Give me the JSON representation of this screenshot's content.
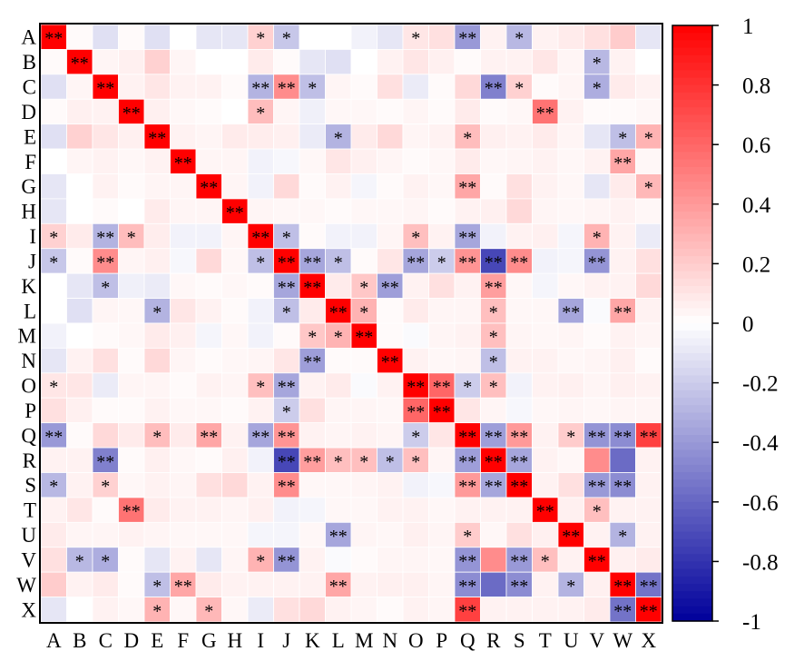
{
  "chart_data": {
    "type": "heatmap",
    "labels": [
      "A",
      "B",
      "C",
      "D",
      "E",
      "F",
      "G",
      "H",
      "I",
      "J",
      "K",
      "L",
      "M",
      "N",
      "O",
      "P",
      "Q",
      "R",
      "S",
      "T",
      "U",
      "V",
      "W",
      "X"
    ],
    "values": [
      [
        1.0,
        0.02,
        -0.12,
        0.02,
        -0.12,
        0.0,
        -0.1,
        -0.1,
        0.18,
        -0.22,
        0.0,
        0.0,
        -0.05,
        -0.1,
        0.1,
        0.12,
        -0.4,
        0.05,
        -0.28,
        0.05,
        0.08,
        0.12,
        0.2,
        -0.1
      ],
      [
        0.02,
        1.0,
        0.04,
        0.06,
        0.18,
        0.04,
        0.0,
        0.0,
        0.08,
        0.02,
        -0.1,
        -0.12,
        0.0,
        0.05,
        0.1,
        0.06,
        0.02,
        0.05,
        0.05,
        0.1,
        0.04,
        -0.28,
        0.05,
        0.0
      ],
      [
        -0.12,
        0.04,
        1.0,
        0.05,
        0.1,
        0.05,
        0.05,
        0.02,
        -0.3,
        0.45,
        -0.25,
        0.04,
        0.02,
        0.12,
        -0.08,
        0.02,
        0.15,
        -0.5,
        0.18,
        0.02,
        0.04,
        -0.32,
        0.08,
        0.05
      ],
      [
        0.02,
        0.06,
        0.05,
        1.0,
        0.06,
        0.03,
        0.02,
        0.0,
        0.26,
        0.04,
        -0.06,
        0.03,
        0.03,
        0.02,
        0.04,
        0.02,
        0.08,
        0.02,
        0.03,
        0.55,
        0.05,
        0.02,
        0.02,
        0.03
      ],
      [
        -0.12,
        0.18,
        0.1,
        0.06,
        1.0,
        0.05,
        0.04,
        0.08,
        0.07,
        0.06,
        -0.08,
        -0.3,
        0.08,
        0.15,
        0.04,
        0.05,
        0.26,
        0.06,
        0.05,
        0.08,
        0.04,
        -0.1,
        -0.25,
        0.3
      ],
      [
        0.0,
        0.04,
        0.05,
        0.03,
        0.05,
        1.0,
        0.04,
        0.04,
        -0.05,
        -0.03,
        0.03,
        0.1,
        0.06,
        0.04,
        0.02,
        0.03,
        0.08,
        0.03,
        0.04,
        0.05,
        0.03,
        0.05,
        0.35,
        0.03
      ],
      [
        -0.1,
        0.0,
        0.05,
        0.02,
        0.04,
        0.04,
        1.0,
        0.04,
        -0.05,
        0.15,
        0.02,
        0.05,
        -0.04,
        0.02,
        0.05,
        0.03,
        0.35,
        0.02,
        0.12,
        0.05,
        0.03,
        -0.1,
        0.08,
        0.28
      ],
      [
        -0.1,
        0.0,
        0.02,
        0.0,
        0.08,
        0.04,
        0.04,
        1.0,
        0.04,
        0.03,
        0.03,
        0.02,
        0.03,
        0.03,
        0.04,
        0.02,
        0.05,
        0.06,
        0.15,
        0.04,
        0.03,
        0.04,
        0.05,
        0.03
      ],
      [
        0.18,
        0.08,
        -0.3,
        0.26,
        0.07,
        -0.05,
        -0.05,
        0.04,
        1.0,
        -0.25,
        0.02,
        -0.05,
        -0.05,
        0.04,
        0.25,
        0.05,
        -0.35,
        -0.05,
        0.05,
        0.06,
        -0.04,
        0.3,
        0.05,
        -0.08
      ],
      [
        -0.22,
        0.02,
        0.45,
        0.04,
        0.06,
        -0.03,
        0.15,
        0.03,
        -0.25,
        1.0,
        -0.35,
        -0.25,
        0.02,
        0.1,
        -0.35,
        -0.2,
        0.42,
        -0.72,
        0.45,
        -0.05,
        -0.04,
        -0.42,
        0.05,
        0.12
      ],
      [
        0.0,
        -0.1,
        -0.25,
        -0.06,
        -0.08,
        0.03,
        0.02,
        0.03,
        0.02,
        -0.35,
        1.0,
        0.08,
        0.22,
        -0.38,
        0.05,
        0.12,
        0.05,
        0.38,
        0.03,
        -0.04,
        0.03,
        0.05,
        0.05,
        0.15
      ],
      [
        0.0,
        -0.12,
        0.04,
        0.03,
        -0.3,
        0.1,
        0.05,
        0.02,
        -0.05,
        -0.25,
        0.08,
        1.0,
        0.3,
        0.02,
        0.08,
        0.04,
        0.04,
        0.25,
        0.03,
        0.03,
        -0.35,
        -0.02,
        0.35,
        0.05
      ],
      [
        -0.05,
        0.0,
        0.02,
        0.03,
        0.08,
        0.06,
        -0.04,
        0.03,
        -0.05,
        0.02,
        0.22,
        0.3,
        1.0,
        0.02,
        -0.02,
        0.04,
        0.05,
        0.25,
        0.04,
        0.03,
        0.04,
        0.02,
        0.05,
        0.04
      ],
      [
        -0.1,
        0.05,
        0.12,
        0.02,
        0.15,
        0.04,
        0.02,
        0.03,
        0.04,
        0.1,
        -0.38,
        0.02,
        0.02,
        1.0,
        0.05,
        0.03,
        0.04,
        -0.25,
        0.05,
        0.05,
        0.03,
        0.04,
        0.06,
        0.02
      ],
      [
        0.1,
        0.1,
        -0.08,
        0.04,
        0.04,
        0.02,
        0.05,
        0.04,
        0.25,
        -0.35,
        0.05,
        0.08,
        -0.02,
        0.05,
        1.0,
        0.6,
        -0.2,
        0.25,
        -0.05,
        0.05,
        0.06,
        0.04,
        0.06,
        0.05
      ],
      [
        0.12,
        0.06,
        0.02,
        0.02,
        0.05,
        0.03,
        0.03,
        0.02,
        0.05,
        -0.2,
        0.12,
        0.04,
        0.04,
        0.03,
        0.6,
        1.0,
        0.1,
        0.04,
        -0.03,
        0.03,
        0.04,
        0.03,
        0.04,
        0.04
      ],
      [
        -0.4,
        0.02,
        0.15,
        0.08,
        0.26,
        0.08,
        0.35,
        0.05,
        -0.35,
        0.42,
        0.05,
        0.04,
        0.05,
        0.04,
        -0.2,
        0.1,
        1.0,
        -0.38,
        0.4,
        0.05,
        0.2,
        -0.42,
        -0.45,
        0.75
      ],
      [
        0.05,
        0.05,
        -0.5,
        0.02,
        0.06,
        0.03,
        0.02,
        0.06,
        -0.05,
        -0.72,
        0.38,
        0.25,
        0.25,
        -0.25,
        0.25,
        0.04,
        -0.38,
        1.0,
        -0.35,
        0.05,
        0.03,
        0.45,
        -0.58,
        0.05
      ],
      [
        -0.28,
        0.05,
        0.18,
        0.03,
        0.05,
        0.04,
        0.12,
        0.15,
        0.05,
        0.45,
        0.03,
        0.03,
        0.04,
        0.05,
        -0.05,
        -0.03,
        0.4,
        -0.35,
        1.0,
        0.05,
        0.12,
        -0.4,
        -0.45,
        0.05
      ],
      [
        0.05,
        0.1,
        0.02,
        0.55,
        0.08,
        0.05,
        0.05,
        0.04,
        0.06,
        -0.05,
        -0.04,
        0.03,
        0.03,
        0.05,
        0.05,
        0.03,
        0.05,
        0.05,
        0.05,
        1.0,
        0.06,
        0.25,
        0.05,
        0.05
      ],
      [
        0.08,
        0.04,
        0.04,
        0.05,
        0.04,
        0.03,
        0.03,
        0.03,
        -0.04,
        -0.04,
        0.03,
        -0.35,
        0.04,
        0.03,
        0.06,
        0.04,
        0.2,
        0.03,
        0.12,
        0.06,
        1.0,
        0.05,
        -0.3,
        0.05
      ],
      [
        0.12,
        -0.28,
        -0.32,
        0.02,
        -0.1,
        0.05,
        -0.1,
        0.04,
        0.3,
        -0.42,
        0.05,
        -0.02,
        0.02,
        0.04,
        0.04,
        0.03,
        -0.42,
        0.45,
        -0.4,
        0.25,
        0.05,
        1.0,
        0.06,
        0.08
      ],
      [
        0.2,
        0.05,
        0.08,
        0.02,
        -0.25,
        0.35,
        0.08,
        0.05,
        0.05,
        0.05,
        0.05,
        0.35,
        0.05,
        0.06,
        0.06,
        0.04,
        -0.45,
        -0.58,
        -0.45,
        0.05,
        -0.3,
        0.06,
        1.0,
        -0.55
      ],
      [
        -0.1,
        0.0,
        0.05,
        0.03,
        0.3,
        0.03,
        0.28,
        0.03,
        -0.08,
        0.12,
        0.15,
        0.05,
        0.04,
        0.02,
        0.05,
        0.04,
        0.75,
        0.05,
        0.05,
        0.05,
        0.05,
        0.08,
        -0.55,
        1.0
      ]
    ],
    "significance": [
      [
        "**",
        "",
        "",
        "",
        "",
        "",
        "",
        "",
        "*",
        "*",
        "",
        "",
        "",
        "",
        "*",
        "",
        "**",
        "",
        "*",
        "",
        "",
        "",
        "",
        ""
      ],
      [
        "",
        "**",
        "",
        "",
        "",
        "",
        "",
        "",
        "",
        "",
        "",
        "",
        "",
        "",
        "",
        "",
        "",
        "",
        "",
        "",
        "",
        "*",
        "",
        ""
      ],
      [
        "",
        "",
        "**",
        "",
        "",
        "",
        "",
        "",
        "**",
        "**",
        "*",
        "",
        "",
        "",
        "",
        "",
        "",
        "**",
        "*",
        "",
        "",
        "*",
        "",
        ""
      ],
      [
        "",
        "",
        "",
        "**",
        "",
        "",
        "",
        "",
        "*",
        "",
        "",
        "",
        "",
        "",
        "",
        "",
        "",
        "",
        "",
        "**",
        "",
        "",
        "",
        ""
      ],
      [
        "",
        "",
        "",
        "",
        "**",
        "",
        "",
        "",
        "",
        "",
        "",
        "*",
        "",
        "",
        "",
        "",
        "*",
        "",
        "",
        "",
        "",
        "",
        "*",
        "*"
      ],
      [
        "",
        "",
        "",
        "",
        "",
        "**",
        "",
        "",
        "",
        "",
        "",
        "",
        "",
        "",
        "",
        "",
        "",
        "",
        "",
        "",
        "",
        "",
        "**",
        ""
      ],
      [
        "",
        "",
        "",
        "",
        "",
        "",
        "**",
        "",
        "",
        "",
        "",
        "",
        "",
        "",
        "",
        "",
        "**",
        "",
        "",
        "",
        "",
        "",
        "",
        "*"
      ],
      [
        "",
        "",
        "",
        "",
        "",
        "",
        "",
        "**",
        "",
        "",
        "",
        "",
        "",
        "",
        "",
        "",
        "",
        "",
        "",
        "",
        "",
        "",
        "",
        ""
      ],
      [
        "*",
        "",
        "**",
        "*",
        "",
        "",
        "",
        "",
        "**",
        "*",
        "",
        "",
        "",
        "",
        "*",
        "",
        "**",
        "",
        "",
        "",
        "",
        "*",
        "",
        ""
      ],
      [
        "*",
        "",
        "**",
        "",
        "",
        "",
        "",
        "",
        "*",
        "**",
        "**",
        "*",
        "",
        "",
        "**",
        "*",
        "**",
        "**",
        "**",
        "",
        "",
        "**",
        "",
        ""
      ],
      [
        "",
        "",
        "*",
        "",
        "",
        "",
        "",
        "",
        "",
        "**",
        "**",
        "",
        "*",
        "**",
        "",
        "",
        "",
        "**",
        "",
        "",
        "",
        "",
        "",
        ""
      ],
      [
        "",
        "",
        "",
        "",
        "*",
        "",
        "",
        "",
        "",
        "*",
        "",
        "**",
        "*",
        "",
        "",
        "",
        "",
        "*",
        "",
        "",
        "**",
        "",
        "**",
        ""
      ],
      [
        "",
        "",
        "",
        "",
        "",
        "",
        "",
        "",
        "",
        "",
        "*",
        "*",
        "**",
        "",
        "",
        "",
        "",
        "*",
        "",
        "",
        "",
        "",
        "",
        ""
      ],
      [
        "",
        "",
        "",
        "",
        "",
        "",
        "",
        "",
        "",
        "",
        "**",
        "",
        "",
        "**",
        "",
        "",
        "",
        "*",
        "",
        "",
        "",
        "",
        "",
        ""
      ],
      [
        "*",
        "",
        "",
        "",
        "",
        "",
        "",
        "",
        "*",
        "**",
        "",
        "",
        "",
        "",
        "**",
        "**",
        "*",
        "*",
        "",
        "",
        "",
        "",
        "",
        ""
      ],
      [
        "",
        "",
        "",
        "",
        "",
        "",
        "",
        "",
        "",
        "*",
        "",
        "",
        "",
        "",
        "**",
        "**",
        "",
        "",
        "",
        "",
        "",
        "",
        "",
        ""
      ],
      [
        "**",
        "",
        "",
        "",
        "*",
        "",
        "**",
        "",
        "**",
        "**",
        "",
        "",
        "",
        "",
        "*",
        "",
        "**",
        "**",
        "**",
        "",
        "*",
        "**",
        "**",
        "**"
      ],
      [
        "",
        "",
        "**",
        "",
        "",
        "",
        "",
        "",
        "",
        "**",
        "**",
        "*",
        "*",
        "*",
        "*",
        "",
        "**",
        "**",
        "**",
        "",
        "",
        "",
        "",
        ""
      ],
      [
        "*",
        "",
        "*",
        "",
        "",
        "",
        "",
        "",
        "",
        "**",
        "",
        "",
        "",
        "",
        "",
        "",
        "**",
        "**",
        "**",
        "",
        "",
        "**",
        "**",
        ""
      ],
      [
        "",
        "",
        "",
        "**",
        "",
        "",
        "",
        "",
        "",
        "",
        "",
        "",
        "",
        "",
        "",
        "",
        "",
        "",
        "",
        "**",
        "",
        "*",
        "",
        ""
      ],
      [
        "",
        "",
        "",
        "",
        "",
        "",
        "",
        "",
        "",
        "",
        "",
        "**",
        "",
        "",
        "",
        "",
        "*",
        "",
        "",
        "",
        "**",
        "",
        "*",
        ""
      ],
      [
        "",
        "*",
        "*",
        "",
        "",
        "",
        "",
        "",
        "*",
        "**",
        "",
        "",
        "",
        "",
        "",
        "",
        "**",
        "",
        "**",
        "*",
        "",
        "**",
        "",
        ""
      ],
      [
        "",
        "",
        "",
        "",
        "*",
        "**",
        "",
        "",
        "",
        "",
        "",
        "**",
        "",
        "",
        "",
        "",
        "**",
        "",
        "**",
        "",
        "*",
        "",
        "**",
        "**"
      ],
      [
        "",
        "",
        "",
        "",
        "*",
        "",
        "*",
        "",
        "",
        "",
        "",
        "",
        "",
        "",
        "",
        "",
        "**",
        "",
        "",
        "",
        "",
        "",
        "**",
        "**"
      ]
    ],
    "colorbar": {
      "min": -1,
      "max": 1,
      "ticks": [
        "1",
        "0.8",
        "0.6",
        "0.4",
        "0.2",
        "0",
        "-0.2",
        "-0.4",
        "-0.6",
        "-0.8",
        "-1"
      ]
    },
    "colors": {
      "positive": "#ff0000",
      "neutral": "#ffffff",
      "negative": "#00009b"
    }
  }
}
